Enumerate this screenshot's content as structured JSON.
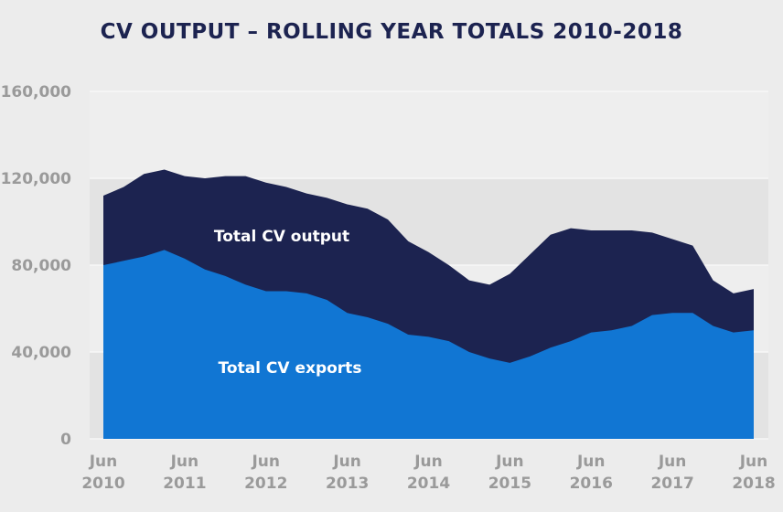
{
  "chart_data": {
    "type": "area",
    "title": "CV OUTPUT – ROLLING YEAR TOTALS 2010-2018",
    "xlabel": "",
    "ylabel": "",
    "ylim": [
      0,
      160000
    ],
    "yticks": [
      "0",
      "40,000",
      "80,000",
      "120,000",
      "160,000"
    ],
    "x_ticks": [
      [
        "Jun",
        "2010"
      ],
      [
        "Jun",
        "2011"
      ],
      [
        "Jun",
        "2012"
      ],
      [
        "Jun",
        "2013"
      ],
      [
        "Jun",
        "2014"
      ],
      [
        "Jun",
        "2015"
      ],
      [
        "Jun",
        "2016"
      ],
      [
        "Jun",
        "2017"
      ],
      [
        "Jun",
        "2018"
      ]
    ],
    "x": [
      "Jun 2010",
      "Sep 2010",
      "Dec 2010",
      "Mar 2011",
      "Jun 2011",
      "Sep 2011",
      "Dec 2011",
      "Mar 2012",
      "Jun 2012",
      "Sep 2012",
      "Dec 2012",
      "Mar 2013",
      "Jun 2013",
      "Sep 2013",
      "Dec 2013",
      "Mar 2014",
      "Jun 2014",
      "Sep 2014",
      "Dec 2014",
      "Mar 2015",
      "Jun 2015",
      "Sep 2015",
      "Dec 2015",
      "Mar 2016",
      "Jun 2016",
      "Sep 2016",
      "Dec 2016",
      "Mar 2017",
      "Jun 2017",
      "Sep 2017",
      "Dec 2017",
      "Mar 2018",
      "Jun 2018"
    ],
    "series": [
      {
        "name": "Total CV output",
        "color": "#1c2350",
        "values": [
          112000,
          116000,
          122000,
          124000,
          121000,
          120000,
          121000,
          121000,
          118000,
          116000,
          113000,
          111000,
          108000,
          106000,
          101000,
          91000,
          86000,
          80000,
          73000,
          71000,
          76000,
          85000,
          94000,
          97000,
          96000,
          96000,
          96000,
          95000,
          92000,
          89000,
          73000,
          67000,
          69000
        ]
      },
      {
        "name": "Total CV exports",
        "color": "#1176d3",
        "values": [
          80000,
          82000,
          84000,
          87000,
          83000,
          78000,
          75000,
          71000,
          68000,
          68000,
          67000,
          64000,
          58000,
          56000,
          53000,
          48000,
          47000,
          45000,
          40000,
          37000,
          35000,
          38000,
          42000,
          45000,
          49000,
          50000,
          52000,
          57000,
          58000,
          58000,
          52000,
          49000,
          50000
        ]
      }
    ],
    "annotations": [
      "Total CV output",
      "Total CV exports"
    ],
    "grid": "horizontal-bands",
    "legend": "none"
  }
}
